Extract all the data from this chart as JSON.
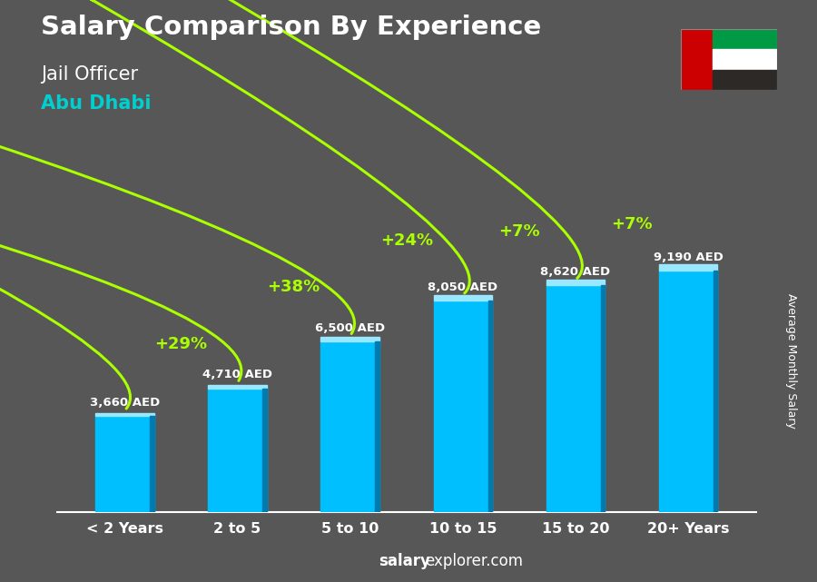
{
  "title": "Salary Comparison By Experience",
  "subtitle": "Jail Officer",
  "location": "Abu Dhabi",
  "categories": [
    "< 2 Years",
    "2 to 5",
    "5 to 10",
    "10 to 15",
    "15 to 20",
    "20+ Years"
  ],
  "values": [
    3660,
    4710,
    6500,
    8050,
    8620,
    9190
  ],
  "bar_color": "#00BFFF",
  "bar_color_top": "#99E8FF",
  "bar_color_shadow": "#007BAF",
  "salary_labels": [
    "3,660 AED",
    "4,710 AED",
    "6,500 AED",
    "8,050 AED",
    "8,620 AED",
    "9,190 AED"
  ],
  "pct_labels": [
    "+29%",
    "+38%",
    "+24%",
    "+7%",
    "+7%"
  ],
  "pct_color": "#AAFF00",
  "arrow_color": "#AAFF00",
  "title_color": "#FFFFFF",
  "subtitle_color": "#FFFFFF",
  "location_color": "#00CFCF",
  "salary_label_color": "#FFFFFF",
  "watermark_bold": "salary",
  "watermark_normal": "explorer.com",
  "ylabel": "Average Monthly Salary",
  "ylim": [
    0,
    11500
  ],
  "flag_colors": [
    "#CC0001",
    "#009A44",
    "#FFFFFF",
    "#2D2926"
  ],
  "arc_heights": [
    1200,
    1600,
    1800,
    1600,
    1300
  ],
  "arc_rads": [
    -0.4,
    -0.4,
    -0.4,
    -0.4,
    -0.4
  ],
  "background_color": "#575757"
}
